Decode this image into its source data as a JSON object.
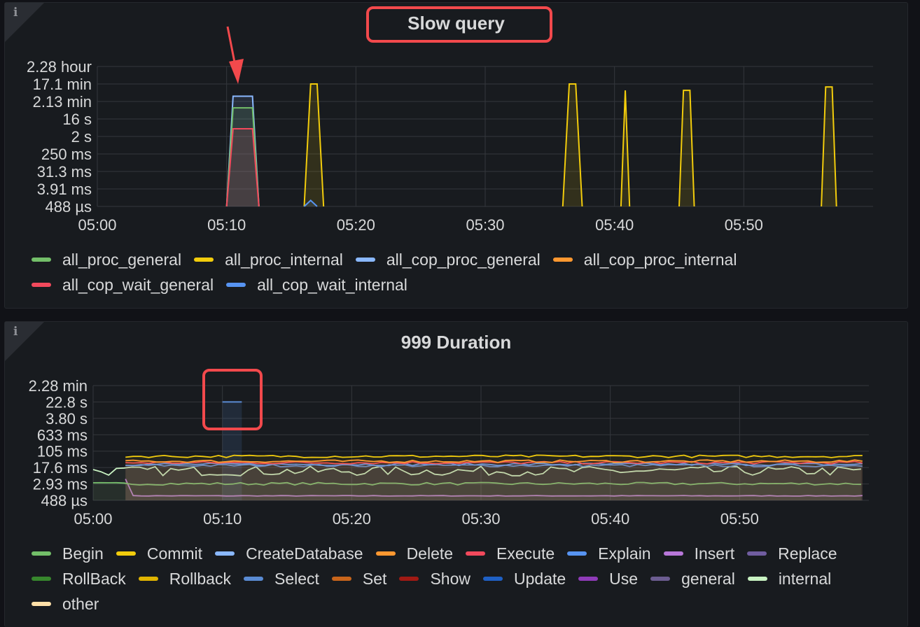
{
  "panels": [
    {
      "title": "Slow query",
      "info_icon": "i"
    },
    {
      "title": "999 Duration",
      "info_icon": "i"
    }
  ],
  "chart_data": [
    {
      "type": "area",
      "title": "Slow query",
      "xlabel": "",
      "ylabel": "",
      "y_scale": "log",
      "y_ticks": [
        "2.28 hour",
        "17.1 min",
        "2.13 min",
        "16 s",
        "2 s",
        "250 ms",
        "31.3 ms",
        "3.91 ms",
        "488 µs"
      ],
      "x_ticks": [
        "05:00",
        "05:10",
        "05:20",
        "05:30",
        "05:40",
        "05:50"
      ],
      "xlim": [
        "05:00",
        "06:00"
      ],
      "legend_position": "bottom",
      "series": [
        {
          "name": "all_proc_general",
          "color": "#73bf69",
          "points": [
            [
              "05:10",
              "488 µs"
            ],
            [
              "05:10:30",
              "1 min"
            ],
            [
              "05:12",
              "1 min"
            ],
            [
              "05:12:30",
              "488 µs"
            ]
          ]
        },
        {
          "name": "all_proc_internal",
          "color": "#f2cc0c",
          "points": [
            [
              "05:16",
              "488 µs"
            ],
            [
              "05:16:30",
              "17.1 min"
            ],
            [
              "05:17",
              "17.1 min"
            ],
            [
              "05:17:30",
              "488 µs"
            ],
            [
              "05:36",
              "488 µs"
            ],
            [
              "05:36:30",
              "17.1 min"
            ],
            [
              "05:37",
              "17.1 min"
            ],
            [
              "05:37:30",
              "488 µs"
            ],
            [
              "05:40:30",
              "488 µs"
            ],
            [
              "05:40:50",
              "8 min"
            ],
            [
              "05:41:10",
              "488 µs"
            ],
            [
              "05:45",
              "488 µs"
            ],
            [
              "05:45:20",
              "8 min"
            ],
            [
              "05:45:50",
              "8 min"
            ],
            [
              "05:46:10",
              "488 µs"
            ],
            [
              "05:56",
              "488 µs"
            ],
            [
              "05:56:20",
              "12 min"
            ],
            [
              "05:56:50",
              "12 min"
            ],
            [
              "05:57:10",
              "488 µs"
            ]
          ]
        },
        {
          "name": "all_cop_proc_general",
          "color": "#8ab8ff",
          "points": [
            [
              "05:10",
              "488 µs"
            ],
            [
              "05:10:30",
              "4 min"
            ],
            [
              "05:12",
              "4 min"
            ],
            [
              "05:12:30",
              "488 µs"
            ]
          ]
        },
        {
          "name": "all_cop_proc_internal",
          "color": "#ff9830",
          "points": []
        },
        {
          "name": "all_cop_wait_general",
          "color": "#f2495c",
          "points": [
            [
              "05:10",
              "488 µs"
            ],
            [
              "05:10:30",
              "5 s"
            ],
            [
              "05:12",
              "5 s"
            ],
            [
              "05:12:30",
              "488 µs"
            ]
          ]
        },
        {
          "name": "all_cop_wait_internal",
          "color": "#5794f2",
          "points": [
            [
              "05:16",
              "488 µs"
            ],
            [
              "05:16:30",
              "1 ms"
            ],
            [
              "05:17",
              "488 µs"
            ]
          ]
        }
      ]
    },
    {
      "type": "line",
      "title": "999 Duration",
      "xlabel": "",
      "ylabel": "",
      "y_scale": "log",
      "y_ticks": [
        "2.28 min",
        "22.8 s",
        "3.80 s",
        "633 ms",
        "105 ms",
        "17.6 ms",
        "2.93 ms",
        "488 µs"
      ],
      "x_ticks": [
        "05:00",
        "05:10",
        "05:20",
        "05:30",
        "05:40",
        "05:50"
      ],
      "xlim": [
        "05:00",
        "06:00"
      ],
      "legend_position": "bottom",
      "series": [
        {
          "name": "Begin",
          "color": "#73bf69",
          "approx_level": "3 ms"
        },
        {
          "name": "Commit",
          "color": "#f2cc0c",
          "approx_level": "60 ms"
        },
        {
          "name": "CreateDatabase",
          "color": "#8ab8ff",
          "approx_level": null
        },
        {
          "name": "Delete",
          "color": "#ff9830",
          "approx_level": "35 ms"
        },
        {
          "name": "Execute",
          "color": "#f2495c",
          "approx_level": "30 ms"
        },
        {
          "name": "Explain",
          "color": "#5794f2",
          "approx_level": "25 ms"
        },
        {
          "name": "Insert",
          "color": "#b877d9",
          "approx_level": "0.8 ms"
        },
        {
          "name": "Replace",
          "color": "#705da0",
          "approx_level": null
        },
        {
          "name": "RollBack",
          "color": "#37872d",
          "approx_level": null
        },
        {
          "name": "Rollback",
          "color": "#e0b400",
          "approx_level": null
        },
        {
          "name": "Select",
          "color": "#5a8bd3",
          "approx_level": "22 ms",
          "peak": {
            "x": "05:10",
            "y": "22.8 s"
          }
        },
        {
          "name": "Set",
          "color": "#c8651b",
          "approx_level": null
        },
        {
          "name": "Show",
          "color": "#a11a14",
          "approx_level": null
        },
        {
          "name": "Update",
          "color": "#1f60c4",
          "approx_level": null
        },
        {
          "name": "Use",
          "color": "#8f3bb8",
          "approx_level": null
        },
        {
          "name": "general",
          "color": "#6c5d91",
          "approx_level": null
        },
        {
          "name": "internal",
          "color": "#c8f2c2",
          "approx_level": "12 ms"
        },
        {
          "name": "other",
          "color": "#ffe0a8",
          "approx_level": null
        }
      ]
    }
  ]
}
